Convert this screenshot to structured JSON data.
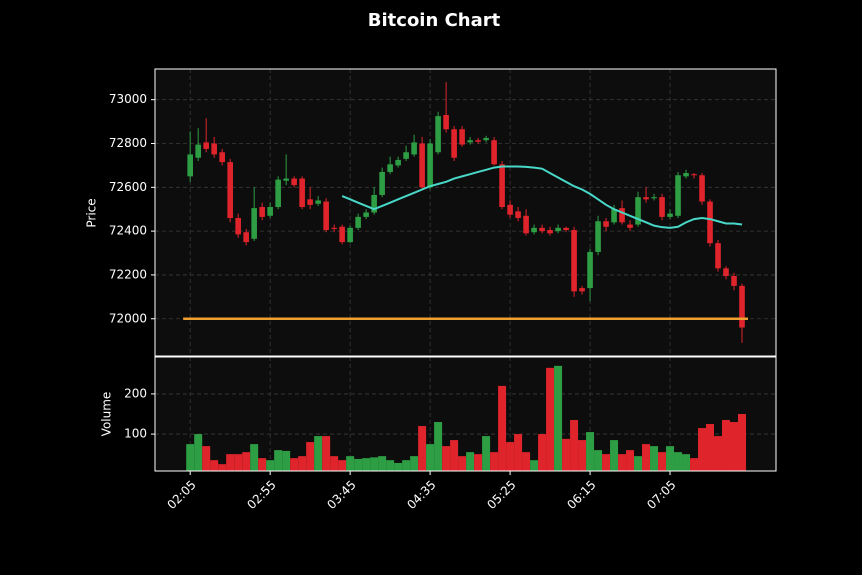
{
  "chart_data": [
    {
      "type": "candlestick",
      "title": "Bitcoin Chart",
      "ylabel": "Price",
      "categories": [
        "02:05",
        null,
        null,
        null,
        null,
        null,
        null,
        null,
        null,
        null,
        "02:55",
        null,
        null,
        null,
        null,
        null,
        null,
        null,
        null,
        null,
        "03:45",
        null,
        null,
        null,
        null,
        null,
        null,
        null,
        null,
        null,
        "04:35",
        null,
        null,
        null,
        null,
        null,
        null,
        null,
        null,
        null,
        "05:25",
        null,
        null,
        null,
        null,
        null,
        null,
        null,
        null,
        null,
        "06:15",
        null,
        null,
        null,
        null,
        null,
        null,
        null,
        null,
        null,
        "07:05",
        null,
        null,
        null,
        null,
        null,
        null,
        null,
        null,
        null
      ],
      "open": [
        72650,
        72735,
        72805,
        72800,
        72760,
        72715,
        72460,
        72395,
        72365,
        72510,
        72470,
        72510,
        72630,
        72640,
        72640,
        72545,
        72525,
        72535,
        72415,
        72420,
        72350,
        72415,
        72465,
        72485,
        72565,
        72670,
        72700,
        72730,
        72750,
        72800,
        72600,
        72760,
        72930,
        72865,
        72865,
        72805,
        72815,
        72815,
        72815,
        72705,
        72520,
        72490,
        72470,
        72395,
        72415,
        72405,
        72400,
        72415,
        72405,
        72140,
        72140,
        72305,
        72445,
        72440,
        72505,
        72430,
        72430,
        72555,
        72550,
        72555,
        72465,
        72470,
        72650,
        72660,
        72655,
        72535,
        72345,
        72230,
        72195,
        72150
      ],
      "high": [
        72855,
        72870,
        72915,
        72830,
        72775,
        72730,
        72480,
        72410,
        72600,
        72530,
        72530,
        72650,
        72750,
        72650,
        72650,
        72600,
        72560,
        72550,
        72430,
        72430,
        72425,
        72480,
        72500,
        72600,
        72690,
        72740,
        72740,
        72790,
        72840,
        72830,
        72820,
        72945,
        73080,
        72880,
        72880,
        72830,
        72825,
        72835,
        72830,
        72720,
        72540,
        72510,
        72500,
        72430,
        72430,
        72420,
        72430,
        72420,
        72420,
        72150,
        72320,
        72470,
        72460,
        72520,
        72540,
        72450,
        72580,
        72600,
        72570,
        72570,
        72500,
        72670,
        72680,
        72665,
        72665,
        72545,
        72360,
        72240,
        72210,
        72160
      ],
      "low": [
        72625,
        72720,
        72760,
        72735,
        72700,
        72440,
        72370,
        72335,
        72355,
        72450,
        72460,
        72500,
        72610,
        72600,
        72500,
        72500,
        72515,
        72395,
        72395,
        72340,
        72345,
        72405,
        72455,
        72475,
        72555,
        72660,
        72690,
        72720,
        72740,
        72590,
        72590,
        72750,
        72850,
        72720,
        72785,
        72795,
        72800,
        72805,
        72700,
        72500,
        72460,
        72445,
        72380,
        72385,
        72390,
        72380,
        72390,
        72395,
        72100,
        72110,
        72080,
        72290,
        72400,
        72430,
        72430,
        72400,
        72420,
        72530,
        72540,
        72450,
        72455,
        72460,
        72640,
        72640,
        72520,
        72330,
        72215,
        72180,
        72130,
        71890
      ],
      "close": [
        72750,
        72795,
        72775,
        72750,
        72715,
        72460,
        72385,
        72350,
        72505,
        72465,
        72510,
        72635,
        72640,
        72610,
        72510,
        72520,
        72540,
        72405,
        72410,
        72350,
        72415,
        72465,
        72485,
        72565,
        72670,
        72705,
        72725,
        72760,
        72805,
        72600,
        72800,
        72925,
        72865,
        72735,
        72795,
        72815,
        72808,
        72825,
        72705,
        72510,
        72475,
        72460,
        72390,
        72415,
        72400,
        72390,
        72415,
        72405,
        72125,
        72125,
        72305,
        72445,
        72420,
        72500,
        72440,
        72415,
        72555,
        72545,
        72555,
        72465,
        72480,
        72655,
        72665,
        72655,
        72535,
        72345,
        72230,
        72195,
        72150,
        71960
      ],
      "up_color": "#2e9e44",
      "down_color": "#e0242c",
      "moving_average": {
        "color": "#48d8c8",
        "values": [
          null,
          null,
          null,
          null,
          null,
          null,
          null,
          null,
          null,
          null,
          null,
          null,
          null,
          null,
          null,
          null,
          null,
          null,
          null,
          72560,
          72545,
          72530,
          72515,
          72500,
          72515,
          72530,
          72545,
          72560,
          72575,
          72590,
          72605,
          72615,
          72625,
          72640,
          72650,
          72660,
          72670,
          72680,
          72690,
          72695,
          72695,
          72695,
          72693,
          72690,
          72685,
          72665,
          72645,
          72625,
          72605,
          72590,
          72570,
          72545,
          72520,
          72500,
          72485,
          72470,
          72455,
          72440,
          72425,
          72418,
          72415,
          72420,
          72440,
          72455,
          72460,
          72455,
          72445,
          72435,
          72435,
          72430
        ]
      },
      "hline": {
        "value": 72000,
        "color": "#f0a030"
      },
      "ylim": [
        71830,
        73140
      ],
      "yticks": [
        72000,
        72200,
        72400,
        72600,
        72800,
        73000
      ],
      "grid": true
    },
    {
      "type": "bar",
      "ylabel": "Volume",
      "values": [
        75,
        100,
        70,
        35,
        25,
        50,
        50,
        55,
        75,
        40,
        35,
        60,
        58,
        40,
        45,
        80,
        95,
        95,
        45,
        35,
        45,
        38,
        40,
        42,
        45,
        35,
        28,
        35,
        45,
        120,
        75,
        130,
        70,
        85,
        45,
        55,
        50,
        95,
        55,
        220,
        80,
        100,
        55,
        35,
        100,
        265,
        270,
        88,
        135,
        85,
        105,
        60,
        50,
        85,
        50,
        60,
        45,
        75,
        70,
        55,
        70,
        55,
        50,
        40,
        115,
        125,
        95,
        135,
        130,
        150
      ],
      "ylim": [
        8,
        292
      ],
      "yticks": [
        100,
        200
      ],
      "grid": true
    }
  ]
}
